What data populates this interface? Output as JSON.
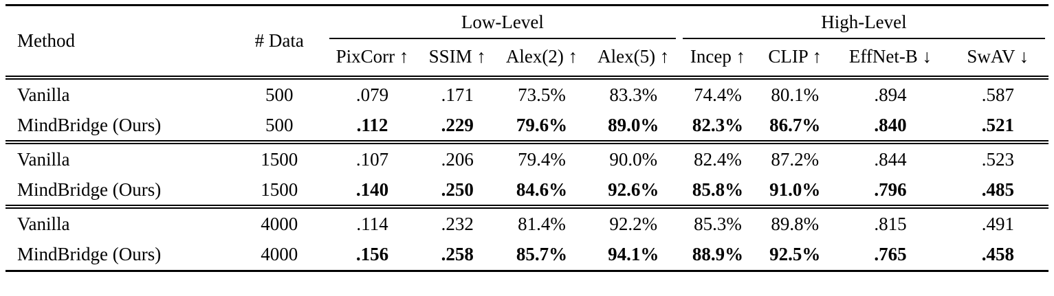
{
  "table": {
    "headers": {
      "method": "Method",
      "n_data": "# Data",
      "group_low": "Low-Level",
      "group_high": "High-Level",
      "metrics": [
        "PixCorr ↑",
        "SSIM ↑",
        "Alex(2) ↑",
        "Alex(5) ↑",
        "Incep ↑",
        "CLIP ↑",
        "EffNet-B ↓",
        "SwAV ↓"
      ]
    },
    "groups": [
      {
        "rows": [
          {
            "method": "Vanilla",
            "n_data": "500",
            "highlight": false,
            "values": [
              ".079",
              ".171",
              "73.5%",
              "83.3%",
              "74.4%",
              "80.1%",
              ".894",
              ".587"
            ]
          },
          {
            "method": "MindBridge (Ours)",
            "n_data": "500",
            "highlight": true,
            "values": [
              ".112",
              ".229",
              "79.6%",
              "89.0%",
              "82.3%",
              "86.7%",
              ".840",
              ".521"
            ]
          }
        ]
      },
      {
        "rows": [
          {
            "method": "Vanilla",
            "n_data": "1500",
            "highlight": false,
            "values": [
              ".107",
              ".206",
              "79.4%",
              "90.0%",
              "82.4%",
              "87.2%",
              ".844",
              ".523"
            ]
          },
          {
            "method": "MindBridge (Ours)",
            "n_data": "1500",
            "highlight": true,
            "values": [
              ".140",
              ".250",
              "84.6%",
              "92.6%",
              "85.8%",
              "91.0%",
              ".796",
              ".485"
            ]
          }
        ]
      },
      {
        "rows": [
          {
            "method": "Vanilla",
            "n_data": "4000",
            "highlight": false,
            "values": [
              ".114",
              ".232",
              "81.4%",
              "92.2%",
              "85.3%",
              "89.8%",
              ".815",
              ".491"
            ]
          },
          {
            "method": "MindBridge (Ours)",
            "n_data": "4000",
            "highlight": true,
            "values": [
              ".156",
              ".258",
              "85.7%",
              "94.1%",
              "88.9%",
              "92.5%",
              ".765",
              ".458"
            ]
          }
        ]
      }
    ],
    "styles": {
      "text_color": "#000000",
      "background": "#ffffff",
      "rule_color": "#000000"
    }
  }
}
